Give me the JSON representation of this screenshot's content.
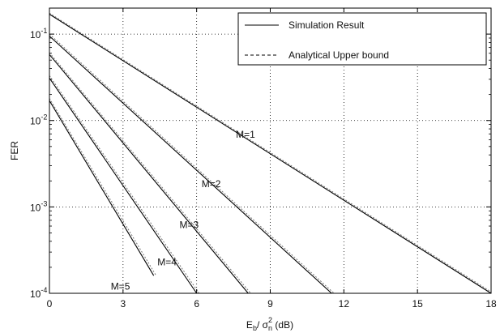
{
  "chart_data": {
    "type": "line",
    "title": "",
    "xlabel": {
      "prefix": "E",
      "sub1": "b",
      "mid": "/ σ",
      "sup": "2",
      "sub2": "n",
      "suffix": " (dB)"
    },
    "ylabel": "FER",
    "x_scale": "linear",
    "y_scale": "log",
    "xlim": [
      0,
      18
    ],
    "ylim": [
      0.0001,
      0.2
    ],
    "x_ticks": [
      0,
      3,
      6,
      9,
      12,
      15,
      18
    ],
    "x_tick_labels": [
      "0",
      "3",
      "6",
      "9",
      "12",
      "15",
      "18"
    ],
    "y_ticks": [
      0.0001,
      0.001,
      0.01,
      0.1
    ],
    "y_tick_labels": [
      {
        "base": "10",
        "exp": "-4"
      },
      {
        "base": "10",
        "exp": "-3"
      },
      {
        "base": "10",
        "exp": "-2"
      },
      {
        "base": "10",
        "exp": "-1"
      }
    ],
    "grid": true,
    "legend": {
      "placement": "top-right",
      "entries": [
        {
          "label": "Simulation Result",
          "style": "solid"
        },
        {
          "label": "Analytical Upper bound",
          "style": "dashed"
        }
      ]
    },
    "series": [
      {
        "label": "M=1",
        "kind": "Simulation Result",
        "x": [
          0,
          18
        ],
        "y": [
          0.17,
          0.0001
        ]
      },
      {
        "label": "M=1",
        "kind": "Analytical Upper bound",
        "x": [
          0,
          18
        ],
        "y": [
          0.175,
          0.000104
        ]
      },
      {
        "label": "M=2",
        "kind": "Simulation Result",
        "x": [
          0,
          11.5
        ],
        "y": [
          0.095,
          0.0001
        ]
      },
      {
        "label": "M=2",
        "kind": "Analytical Upper bound",
        "x": [
          0,
          11.6
        ],
        "y": [
          0.1,
          0.0001
        ]
      },
      {
        "label": "M=3",
        "kind": "Simulation Result",
        "x": [
          0,
          8.1
        ],
        "y": [
          0.058,
          0.0001
        ]
      },
      {
        "label": "M=3",
        "kind": "Analytical Upper bound",
        "x": [
          0,
          8.2
        ],
        "y": [
          0.061,
          0.0001
        ]
      },
      {
        "label": "M=4",
        "kind": "Simulation Result",
        "x": [
          0,
          6.0
        ],
        "y": [
          0.031,
          0.0001
        ]
      },
      {
        "label": "M=4",
        "kind": "Analytical Upper bound",
        "x": [
          0,
          6.1
        ],
        "y": [
          0.033,
          0.0001
        ]
      },
      {
        "label": "M=5",
        "kind": "Simulation Result",
        "x": [
          0,
          4.25
        ],
        "y": [
          0.017,
          0.00016
        ]
      },
      {
        "label": "M=5",
        "kind": "Analytical Upper bound",
        "x": [
          0,
          4.35
        ],
        "y": [
          0.018,
          0.00016
        ]
      }
    ],
    "annotations": [
      {
        "text": "M=1",
        "x": 7.6,
        "y": 0.0063
      },
      {
        "text": "M=2",
        "x": 6.2,
        "y": 0.0017
      },
      {
        "text": "M=3",
        "x": 5.3,
        "y": 0.00057
      },
      {
        "text": "M=4",
        "x": 4.4,
        "y": 0.00021
      },
      {
        "text": "M=5",
        "x": 2.5,
        "y": 0.00011
      }
    ]
  }
}
